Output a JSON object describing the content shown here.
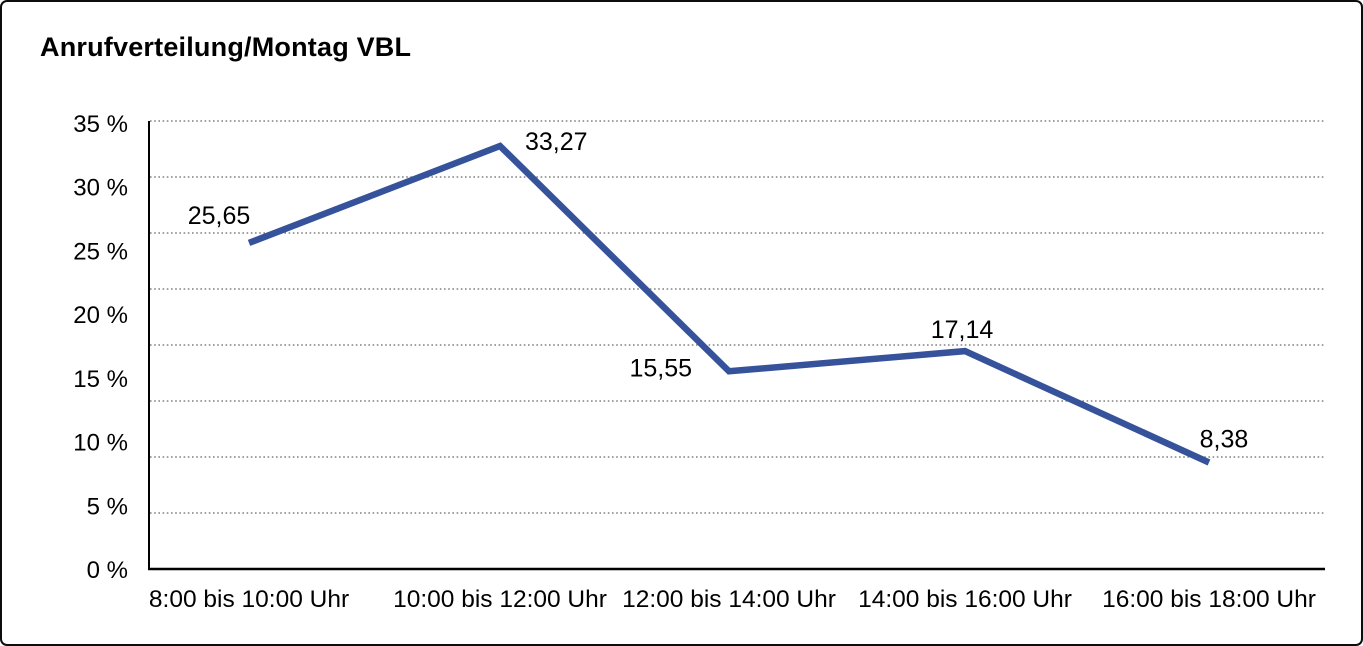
{
  "frame": {
    "background": "#ffffff",
    "border_color": "#0d0d0d"
  },
  "chart_data": {
    "type": "line",
    "title": "Anrufverteilung/Montag VBL",
    "categories": [
      "8:00 bis 10:00 Uhr",
      "10:00 bis 12:00 Uhr",
      "12:00 bis 14:00 Uhr",
      "14:00 bis 16:00 Uhr",
      "16:00 bis 18:00 Uhr"
    ],
    "values": [
      25.65,
      33.27,
      15.55,
      17.14,
      8.38
    ],
    "data_labels": [
      "25,65",
      "33,27",
      "15,55",
      "17,14",
      "8,38"
    ],
    "ytick_labels": [
      "35 %",
      "30 %",
      "25 %",
      "20 %",
      "15 %",
      "10 %",
      "5 %",
      "0 %"
    ],
    "ylim": [
      0,
      35
    ],
    "ytick_step": 5,
    "xlabel": "",
    "ylabel": "",
    "grid": "horizontal-dotted",
    "legend": "none",
    "colors": {
      "series_line": "#35529B",
      "axis": "#000000",
      "gridline": "#808080",
      "text": "#000000"
    }
  }
}
